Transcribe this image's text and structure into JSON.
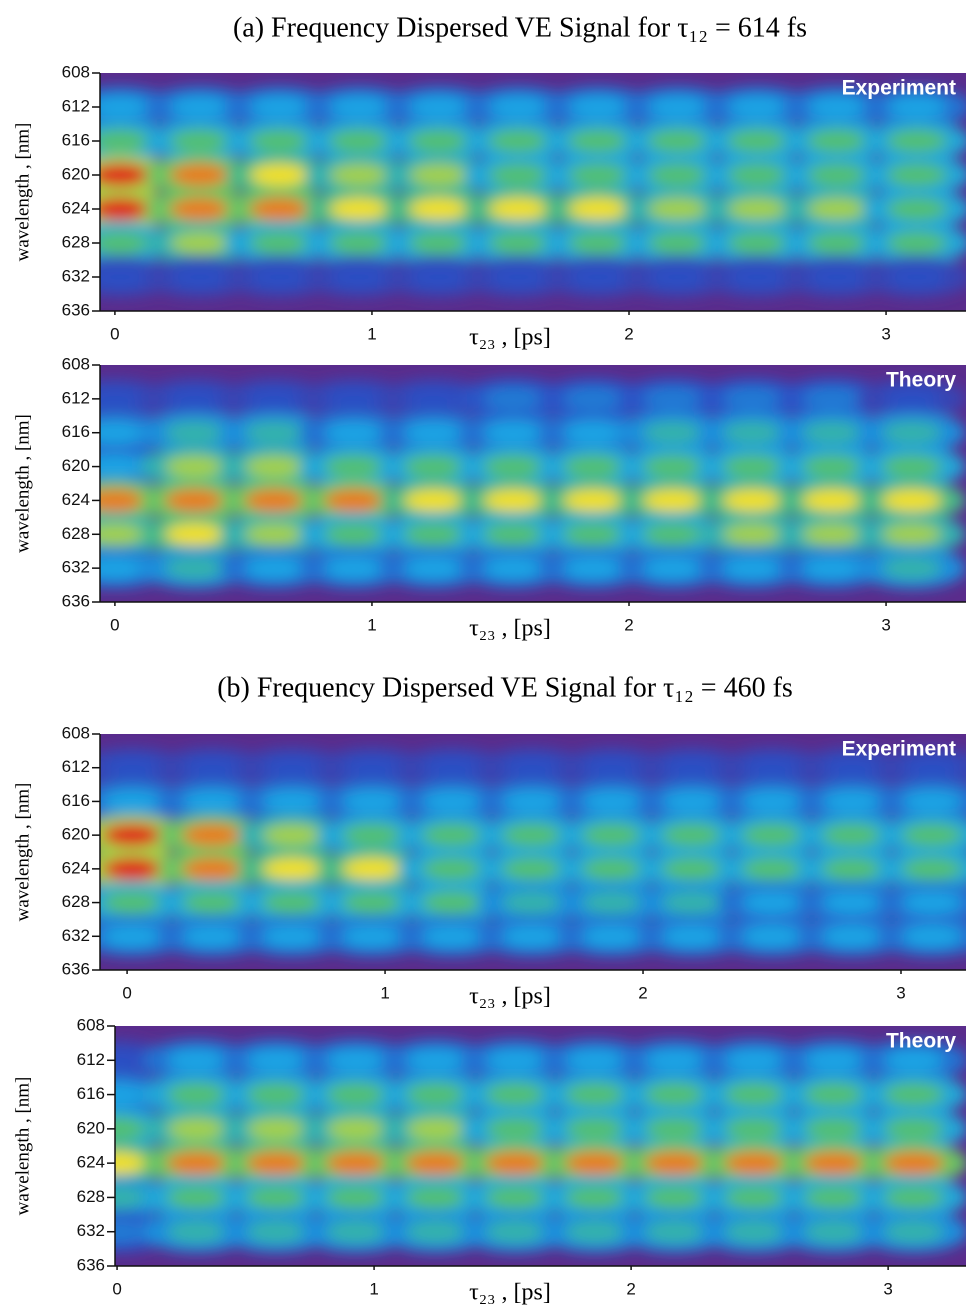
{
  "headings": [
    "(a)  Frequency Dispersed VE Signal for τ₁₂ = 614 fs",
    "(b) Frequency Dispersed VE Signal for τ₁₂ = 460 fs"
  ],
  "chart_data": [
    {
      "type": "heatmap",
      "annotation": "Experiment",
      "xlabel": "τ₂₃ , [ps]",
      "ylabel": "wavelength , [nm]",
      "xlim": [
        -0.058,
        3.311
      ],
      "ylim": [
        608,
        636
      ],
      "xticks": [
        0,
        1,
        2,
        3
      ],
      "yticks": [
        608,
        612,
        616,
        620,
        624,
        628,
        632,
        636
      ],
      "zlim": [
        0,
        5
      ],
      "colormap": [
        "#5a2c8c",
        "#2a50c4",
        "#1aa4e4",
        "#52c070",
        "#f2e020",
        "#e01818"
      ],
      "x": [
        0.02,
        0.33,
        0.64,
        0.95,
        1.26,
        1.57,
        1.88,
        2.19,
        2.5,
        2.81,
        3.12
      ],
      "y": [
        612,
        616,
        620,
        624,
        628,
        632
      ],
      "z": [
        [
          2,
          2,
          2,
          2,
          2,
          2,
          2,
          2,
          2,
          2,
          2
        ],
        [
          3,
          3,
          3,
          3,
          3,
          3,
          3,
          3,
          3,
          3,
          3
        ],
        [
          5,
          4.5,
          4,
          3.5,
          3.5,
          3,
          3,
          3,
          3,
          3,
          3
        ],
        [
          5,
          4.5,
          4.5,
          4,
          4,
          4,
          4,
          3.5,
          3.5,
          3.5,
          3
        ],
        [
          3,
          3.5,
          3,
          3,
          3,
          3,
          3,
          3,
          3,
          3,
          3
        ],
        [
          1,
          1,
          1,
          1,
          1,
          1,
          1,
          1,
          1,
          1,
          1
        ]
      ]
    },
    {
      "type": "heatmap",
      "annotation": "Theory",
      "xlabel": "τ₂₃ , [ps]",
      "ylabel": "wavelength , [nm]",
      "xlim": [
        -0.058,
        3.311
      ],
      "ylim": [
        608,
        636
      ],
      "xticks": [
        0,
        1,
        2,
        3
      ],
      "yticks": [
        608,
        612,
        616,
        620,
        624,
        628,
        632,
        636
      ],
      "zlim": [
        0,
        5
      ],
      "colormap": [
        "#5a2c8c",
        "#2a50c4",
        "#1aa4e4",
        "#52c070",
        "#f2e020",
        "#e01818"
      ],
      "x": [
        0.0,
        0.31,
        0.62,
        0.93,
        1.24,
        1.55,
        1.86,
        2.17,
        2.48,
        2.79,
        3.1
      ],
      "y": [
        612,
        616,
        620,
        624,
        628,
        632
      ],
      "z": [
        [
          1,
          1,
          1,
          1,
          1,
          1.5,
          1.5,
          1.5,
          1.5,
          1.5,
          1
        ],
        [
          2,
          2.5,
          2.5,
          2,
          2,
          2,
          2,
          2.5,
          2.5,
          2.5,
          2.5
        ],
        [
          2,
          3.5,
          3.5,
          3,
          3,
          3,
          3,
          3,
          3,
          3,
          3
        ],
        [
          4.5,
          4.5,
          4.5,
          4.5,
          4,
          4,
          4,
          4,
          4,
          4,
          4
        ],
        [
          3.5,
          4,
          3.5,
          3,
          3,
          3,
          3,
          3,
          3.5,
          3.5,
          3.5
        ],
        [
          2,
          2.5,
          2,
          2,
          2,
          2,
          2,
          2,
          2,
          2,
          2.5
        ]
      ]
    },
    {
      "type": "heatmap",
      "annotation": "Experiment",
      "xlabel": "τ₂₃ , [ps]",
      "ylabel": "wavelength , [nm]",
      "xlim": [
        -0.105,
        3.252
      ],
      "ylim": [
        608,
        636
      ],
      "xticks": [
        0,
        1,
        2,
        3
      ],
      "yticks": [
        608,
        612,
        616,
        620,
        624,
        628,
        632,
        636
      ],
      "zlim": [
        0,
        5
      ],
      "colormap": [
        "#5a2c8c",
        "#2a50c4",
        "#1aa4e4",
        "#52c070",
        "#f2e020",
        "#e01818"
      ],
      "x": [
        0.02,
        0.33,
        0.64,
        0.95,
        1.26,
        1.57,
        1.88,
        2.19,
        2.5,
        2.81,
        3.12
      ],
      "y": [
        612,
        616,
        620,
        624,
        628,
        632
      ],
      "z": [
        [
          1,
          1,
          1,
          1,
          1,
          1,
          1,
          1,
          1,
          1,
          1
        ],
        [
          2,
          2,
          2,
          2,
          2,
          2,
          2,
          2,
          2,
          2,
          2
        ],
        [
          5,
          4.5,
          3.5,
          3,
          3,
          3,
          3,
          3,
          3,
          3,
          3
        ],
        [
          5,
          4.5,
          4,
          4,
          3,
          3,
          3,
          3,
          3,
          3,
          3
        ],
        [
          3,
          3,
          3,
          3,
          3,
          2.5,
          2.5,
          2.5,
          2,
          2,
          2
        ],
        [
          2,
          2,
          2,
          2,
          2,
          2,
          2,
          2,
          2,
          2,
          2
        ]
      ]
    },
    {
      "type": "heatmap",
      "annotation": "Theory",
      "xlabel": "τ₂₃ , [ps]",
      "ylabel": "wavelength , [nm]",
      "xlim": [
        -0.008,
        3.303
      ],
      "ylim": [
        608,
        636
      ],
      "xticks": [
        0,
        1,
        2,
        3
      ],
      "yticks": [
        608,
        612,
        616,
        620,
        624,
        628,
        632,
        636
      ],
      "zlim": [
        0,
        5
      ],
      "colormap": [
        "#5a2c8c",
        "#2a50c4",
        "#1aa4e4",
        "#52c070",
        "#f2e020",
        "#e01818"
      ],
      "x": [
        0.0,
        0.31,
        0.62,
        0.93,
        1.24,
        1.55,
        1.86,
        2.17,
        2.48,
        2.79,
        3.1
      ],
      "y": [
        612,
        616,
        620,
        624,
        628,
        632
      ],
      "z": [
        [
          1,
          2,
          2,
          2,
          2,
          2,
          2,
          2,
          2,
          2,
          2
        ],
        [
          2,
          3,
          3,
          3,
          3,
          3,
          3,
          3,
          3,
          3,
          3
        ],
        [
          3,
          3.5,
          3.5,
          3.5,
          3.5,
          3,
          3,
          3,
          3,
          3,
          3
        ],
        [
          4,
          4.5,
          4.5,
          4.5,
          4.5,
          4.5,
          4.5,
          4.5,
          4.5,
          4.5,
          4.5
        ],
        [
          2.5,
          3,
          3,
          3,
          3,
          3,
          3,
          3,
          3,
          3,
          3
        ],
        [
          1.5,
          2.5,
          2.5,
          2.5,
          2.5,
          2.5,
          2.5,
          2.5,
          2.5,
          2.5,
          2.5
        ]
      ]
    }
  ]
}
